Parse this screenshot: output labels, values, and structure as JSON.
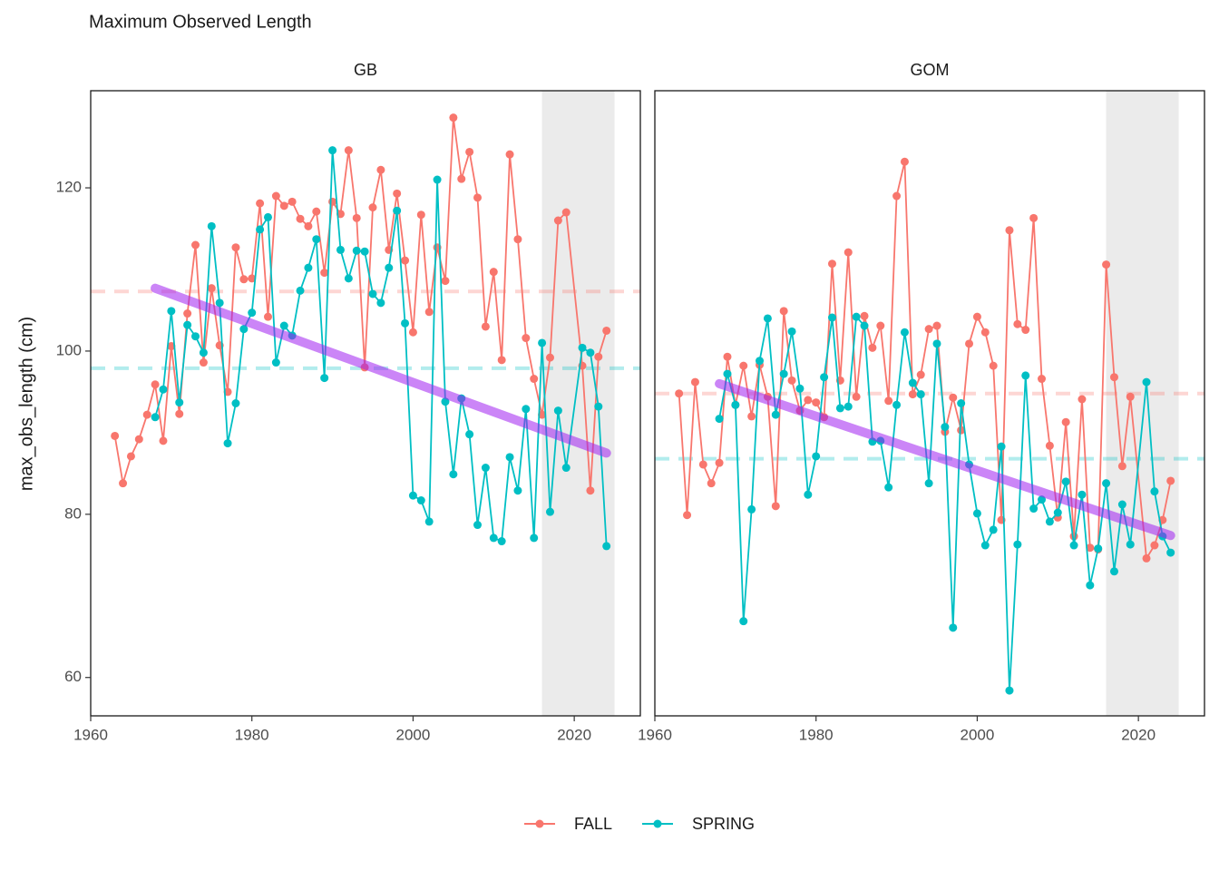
{
  "title": "Maximum Observed Length",
  "y_label": "max_obs_length (cm)",
  "chart_data": [
    {
      "type": "line",
      "title": "GB",
      "xlim": [
        1960,
        2028.2
      ],
      "ylim": [
        55.3,
        131.9
      ],
      "xticks": [
        1960,
        1980,
        2000,
        2020
      ],
      "yticks": [
        60,
        80,
        100,
        120
      ],
      "shade_x": [
        2016,
        2025
      ],
      "shade_color": "#ebebeb",
      "trend": {
        "color": "#a020f0",
        "x": [
          1968,
          2024
        ],
        "values": [
          107.7,
          87.5
        ]
      },
      "series": [
        {
          "name": "FALL",
          "color": "#f8766d",
          "hline": 107.3,
          "x": [
            1963,
            1964,
            1965,
            1966,
            1967,
            1968,
            1969,
            1970,
            1971,
            1972,
            1973,
            1974,
            1975,
            1976,
            1977,
            1978,
            1979,
            1980,
            1981,
            1982,
            1983,
            1984,
            1985,
            1986,
            1987,
            1988,
            1989,
            1990,
            1991,
            1992,
            1993,
            1994,
            1995,
            1996,
            1997,
            1998,
            1999,
            2000,
            2001,
            2002,
            2003,
            2004,
            2005,
            2006,
            2007,
            2008,
            2009,
            2010,
            2011,
            2012,
            2013,
            2014,
            2015,
            2016,
            2017,
            2018,
            2019,
            2021,
            2022,
            2023,
            2024
          ],
          "values": [
            89.6,
            83.8,
            87.1,
            89.2,
            92.2,
            95.9,
            89.0,
            100.6,
            92.3,
            104.6,
            113.0,
            98.6,
            107.7,
            100.7,
            95.0,
            112.7,
            108.8,
            108.9,
            118.1,
            104.2,
            119.0,
            117.8,
            118.3,
            116.2,
            115.3,
            117.1,
            109.6,
            118.3,
            116.8,
            124.6,
            116.3,
            98.0,
            117.6,
            122.2,
            112.4,
            119.3,
            111.1,
            102.3,
            116.7,
            104.8,
            112.7,
            108.6,
            128.6,
            121.1,
            124.4,
            118.8,
            103.0,
            109.7,
            98.9,
            124.1,
            113.7,
            101.6,
            96.6,
            92.2,
            99.2,
            116.0,
            117.0,
            98.2,
            82.9,
            99.3,
            102.5
          ]
        },
        {
          "name": "SPRING",
          "color": "#00bfc4",
          "hline": 97.9,
          "x": [
            1968,
            1969,
            1970,
            1971,
            1972,
            1973,
            1974,
            1975,
            1976,
            1977,
            1978,
            1979,
            1980,
            1981,
            1982,
            1983,
            1984,
            1985,
            1986,
            1987,
            1988,
            1989,
            1990,
            1991,
            1992,
            1993,
            1994,
            1995,
            1996,
            1997,
            1998,
            1999,
            2000,
            2001,
            2002,
            2003,
            2004,
            2005,
            2006,
            2007,
            2008,
            2009,
            2010,
            2011,
            2012,
            2013,
            2014,
            2015,
            2016,
            2017,
            2018,
            2019,
            2021,
            2022,
            2023,
            2024
          ],
          "values": [
            91.9,
            95.3,
            104.9,
            93.7,
            103.2,
            101.8,
            99.8,
            115.3,
            105.9,
            88.7,
            93.6,
            102.7,
            104.7,
            114.9,
            116.4,
            98.6,
            103.1,
            101.9,
            107.4,
            110.2,
            113.7,
            96.7,
            124.6,
            112.4,
            108.9,
            112.3,
            112.2,
            107.0,
            105.9,
            110.2,
            117.2,
            103.4,
            82.3,
            81.7,
            79.1,
            121.0,
            93.8,
            84.9,
            94.2,
            89.8,
            78.7,
            85.7,
            77.1,
            76.7,
            87.0,
            82.9,
            92.9,
            77.1,
            101.0,
            80.3,
            92.7,
            85.7,
            100.4,
            99.8,
            93.2,
            76.1
          ]
        }
      ]
    },
    {
      "type": "line",
      "title": "GOM",
      "xlim": [
        1960,
        2028.2
      ],
      "ylim": [
        55.3,
        131.9
      ],
      "xticks": [
        1960,
        1980,
        2000,
        2020
      ],
      "shade_x": [
        2016,
        2025
      ],
      "shade_color": "#ebebeb",
      "trend": {
        "color": "#a020f0",
        "x": [
          1968,
          2024
        ],
        "values": [
          96.0,
          77.4
        ]
      },
      "series": [
        {
          "name": "FALL",
          "color": "#f8766d",
          "hline": 94.8,
          "x": [
            1963,
            1964,
            1965,
            1966,
            1967,
            1968,
            1969,
            1970,
            1971,
            1972,
            1973,
            1974,
            1975,
            1976,
            1977,
            1978,
            1979,
            1980,
            1981,
            1982,
            1983,
            1984,
            1985,
            1986,
            1987,
            1988,
            1989,
            1990,
            1991,
            1992,
            1993,
            1994,
            1995,
            1996,
            1997,
            1998,
            1999,
            2000,
            2001,
            2002,
            2003,
            2004,
            2005,
            2006,
            2007,
            2008,
            2009,
            2010,
            2011,
            2012,
            2013,
            2014,
            2015,
            2016,
            2017,
            2018,
            2019,
            2021,
            2022,
            2023,
            2024
          ],
          "values": [
            94.8,
            79.9,
            96.2,
            86.1,
            83.8,
            86.3,
            99.3,
            93.4,
            98.2,
            92.0,
            98.3,
            94.4,
            81.0,
            104.9,
            96.4,
            92.7,
            94.0,
            93.7,
            91.9,
            110.7,
            96.4,
            112.1,
            94.4,
            104.3,
            100.4,
            103.1,
            93.9,
            119.0,
            123.2,
            94.7,
            97.1,
            102.7,
            103.1,
            90.1,
            94.3,
            90.3,
            100.9,
            104.2,
            102.3,
            98.2,
            79.3,
            114.8,
            103.3,
            102.6,
            116.3,
            96.6,
            88.4,
            79.6,
            91.3,
            77.3,
            94.1,
            75.9,
            75.7,
            110.6,
            96.8,
            85.9,
            94.4,
            74.6,
            76.2,
            79.3,
            84.1
          ]
        },
        {
          "name": "SPRING",
          "color": "#00bfc4",
          "hline": 86.8,
          "x": [
            1968,
            1969,
            1970,
            1971,
            1972,
            1973,
            1974,
            1975,
            1976,
            1977,
            1978,
            1979,
            1980,
            1981,
            1982,
            1983,
            1984,
            1985,
            1986,
            1987,
            1988,
            1989,
            1990,
            1991,
            1992,
            1993,
            1994,
            1995,
            1996,
            1997,
            1998,
            1999,
            2000,
            2001,
            2002,
            2003,
            2004,
            2005,
            2006,
            2007,
            2008,
            2009,
            2010,
            2011,
            2012,
            2013,
            2014,
            2015,
            2016,
            2017,
            2018,
            2019,
            2021,
            2022,
            2023,
            2024
          ],
          "values": [
            91.7,
            97.2,
            93.4,
            66.9,
            80.6,
            98.8,
            104.0,
            92.2,
            97.2,
            102.4,
            95.4,
            82.4,
            87.1,
            96.8,
            104.1,
            93.0,
            93.2,
            104.2,
            103.1,
            88.9,
            89.0,
            83.3,
            93.4,
            102.3,
            96.1,
            94.7,
            83.8,
            100.9,
            90.7,
            66.1,
            93.6,
            86.1,
            80.1,
            76.2,
            78.1,
            88.3,
            58.4,
            76.3,
            97.0,
            80.7,
            81.8,
            79.1,
            80.2,
            84.0,
            76.2,
            82.4,
            71.3,
            75.8,
            83.8,
            73.0,
            81.2,
            76.3,
            96.2,
            82.8,
            77.3,
            75.3
          ]
        }
      ]
    }
  ]
}
